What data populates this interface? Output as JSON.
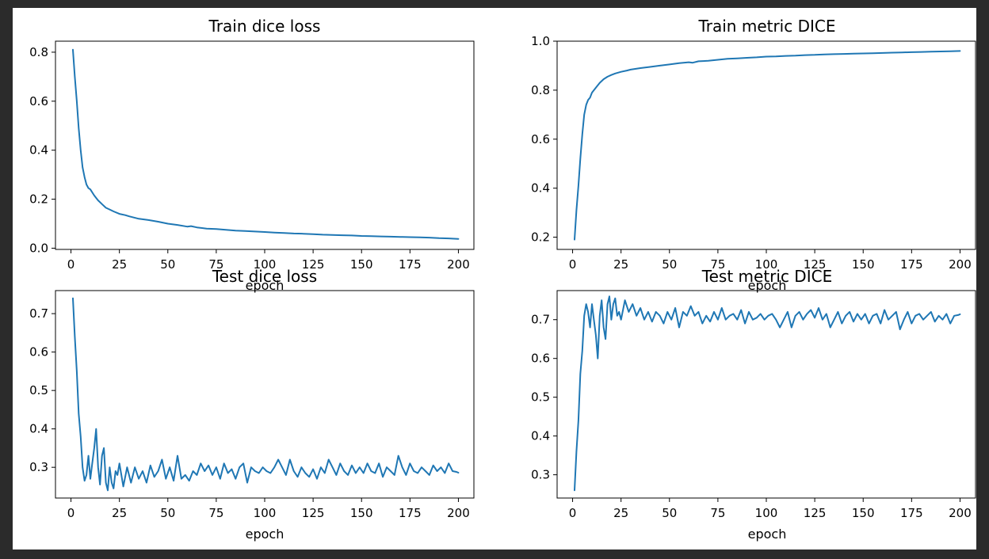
{
  "figure": {
    "background": "#2b2b2b",
    "paper": "#ffffff",
    "line_color": "#1f77b4"
  },
  "chart_data": [
    {
      "type": "line",
      "title": "Train dice loss",
      "xlabel": "epoch",
      "ylabel": "",
      "xlim": [
        -8,
        208
      ],
      "ylim": [
        -0.005,
        0.845
      ],
      "xticks": [
        0,
        25,
        50,
        75,
        100,
        125,
        150,
        175,
        200
      ],
      "yticks": [
        0.0,
        0.2,
        0.4,
        0.6,
        0.8
      ],
      "ytick_labels": [
        "0.0",
        "0.2",
        "0.4",
        "0.6",
        "0.8"
      ],
      "series": [
        {
          "x": [
            1,
            2,
            3,
            4,
            5,
            6,
            7,
            8,
            9,
            10,
            12,
            14,
            16,
            18,
            20,
            22,
            25,
            28,
            30,
            35,
            40,
            45,
            50,
            55,
            60,
            62,
            65,
            70,
            75,
            80,
            85,
            90,
            95,
            100,
            105,
            110,
            115,
            120,
            125,
            130,
            135,
            140,
            145,
            150,
            155,
            160,
            165,
            170,
            175,
            180,
            185,
            190,
            195,
            200
          ],
          "y": [
            0.81,
            0.7,
            0.6,
            0.49,
            0.4,
            0.33,
            0.29,
            0.26,
            0.245,
            0.24,
            0.215,
            0.195,
            0.18,
            0.165,
            0.158,
            0.15,
            0.14,
            0.135,
            0.13,
            0.12,
            0.115,
            0.108,
            0.1,
            0.095,
            0.088,
            0.09,
            0.085,
            0.08,
            0.078,
            0.075,
            0.072,
            0.07,
            0.068,
            0.066,
            0.064,
            0.062,
            0.06,
            0.059,
            0.057,
            0.055,
            0.054,
            0.053,
            0.052,
            0.05,
            0.049,
            0.048,
            0.047,
            0.046,
            0.045,
            0.044,
            0.043,
            0.041,
            0.04,
            0.038
          ]
        }
      ]
    },
    {
      "type": "line",
      "title": "Train metric DICE",
      "xlabel": "epoch",
      "ylabel": "",
      "xlim": [
        -8,
        208
      ],
      "ylim": [
        0.15,
        1.0
      ],
      "xticks": [
        0,
        25,
        50,
        75,
        100,
        125,
        150,
        175,
        200
      ],
      "yticks": [
        0.2,
        0.4,
        0.6,
        0.8,
        1.0
      ],
      "ytick_labels": [
        "0.2",
        "0.4",
        "0.6",
        "0.8",
        "1.0"
      ],
      "series": [
        {
          "x": [
            1,
            2,
            3,
            4,
            5,
            6,
            7,
            8,
            9,
            10,
            12,
            14,
            16,
            18,
            20,
            22,
            25,
            28,
            30,
            35,
            40,
            45,
            50,
            55,
            60,
            62,
            65,
            70,
            75,
            80,
            85,
            90,
            95,
            100,
            105,
            110,
            115,
            120,
            125,
            130,
            135,
            140,
            145,
            150,
            155,
            160,
            165,
            170,
            175,
            180,
            185,
            190,
            195,
            200
          ],
          "y": [
            0.19,
            0.31,
            0.41,
            0.52,
            0.62,
            0.7,
            0.74,
            0.76,
            0.77,
            0.79,
            0.81,
            0.83,
            0.845,
            0.855,
            0.862,
            0.868,
            0.875,
            0.88,
            0.884,
            0.89,
            0.895,
            0.9,
            0.905,
            0.91,
            0.914,
            0.912,
            0.918,
            0.92,
            0.924,
            0.928,
            0.93,
            0.932,
            0.934,
            0.937,
            0.938,
            0.94,
            0.941,
            0.943,
            0.944,
            0.946,
            0.947,
            0.948,
            0.949,
            0.95,
            0.951,
            0.952,
            0.953,
            0.954,
            0.955,
            0.956,
            0.957,
            0.958,
            0.959,
            0.96
          ]
        }
      ]
    },
    {
      "type": "line",
      "title": "Test dice loss",
      "xlabel": "epoch",
      "ylabel": "",
      "xlim": [
        -8,
        208
      ],
      "ylim": [
        0.22,
        0.76
      ],
      "xticks": [
        0,
        25,
        50,
        75,
        100,
        125,
        150,
        175,
        200
      ],
      "yticks": [
        0.3,
        0.4,
        0.5,
        0.6,
        0.7
      ],
      "ytick_labels": [
        "0.3",
        "0.4",
        "0.5",
        "0.6",
        "0.7"
      ],
      "series": [
        {
          "x": [
            1,
            2,
            3,
            4,
            5,
            6,
            7,
            8,
            9,
            10,
            11,
            12,
            13,
            14,
            15,
            16,
            17,
            18,
            19,
            20,
            21,
            22,
            23,
            24,
            25,
            27,
            29,
            31,
            33,
            35,
            37,
            39,
            41,
            43,
            45,
            47,
            49,
            51,
            53,
            55,
            57,
            59,
            61,
            63,
            65,
            67,
            69,
            71,
            73,
            75,
            77,
            79,
            81,
            83,
            85,
            87,
            89,
            91,
            93,
            95,
            97,
            99,
            101,
            103,
            105,
            107,
            109,
            111,
            113,
            115,
            117,
            119,
            121,
            123,
            125,
            127,
            129,
            131,
            133,
            135,
            137,
            139,
            141,
            143,
            145,
            147,
            149,
            151,
            153,
            155,
            157,
            159,
            161,
            163,
            165,
            167,
            169,
            171,
            173,
            175,
            177,
            179,
            181,
            183,
            185,
            187,
            189,
            191,
            193,
            195,
            197,
            199,
            200
          ],
          "y": [
            0.74,
            0.64,
            0.55,
            0.44,
            0.38,
            0.3,
            0.265,
            0.28,
            0.33,
            0.27,
            0.31,
            0.35,
            0.4,
            0.3,
            0.255,
            0.33,
            0.35,
            0.26,
            0.24,
            0.3,
            0.26,
            0.245,
            0.29,
            0.28,
            0.31,
            0.25,
            0.3,
            0.26,
            0.3,
            0.27,
            0.29,
            0.26,
            0.305,
            0.275,
            0.29,
            0.32,
            0.27,
            0.3,
            0.265,
            0.33,
            0.27,
            0.28,
            0.265,
            0.29,
            0.28,
            0.31,
            0.29,
            0.305,
            0.28,
            0.3,
            0.27,
            0.31,
            0.285,
            0.295,
            0.27,
            0.3,
            0.31,
            0.26,
            0.3,
            0.29,
            0.285,
            0.3,
            0.29,
            0.285,
            0.3,
            0.32,
            0.3,
            0.28,
            0.32,
            0.29,
            0.275,
            0.3,
            0.285,
            0.275,
            0.295,
            0.27,
            0.3,
            0.285,
            0.32,
            0.3,
            0.28,
            0.31,
            0.29,
            0.28,
            0.305,
            0.285,
            0.3,
            0.285,
            0.31,
            0.29,
            0.285,
            0.31,
            0.275,
            0.3,
            0.29,
            0.28,
            0.33,
            0.3,
            0.28,
            0.31,
            0.29,
            0.285,
            0.3,
            0.29,
            0.28,
            0.305,
            0.29,
            0.3,
            0.285,
            0.31,
            0.29,
            0.288,
            0.286
          ]
        }
      ]
    },
    {
      "type": "line",
      "title": "Test metric DICE",
      "xlabel": "epoch",
      "ylabel": "",
      "xlim": [
        -8,
        208
      ],
      "ylim": [
        0.24,
        0.775
      ],
      "xticks": [
        0,
        25,
        50,
        75,
        100,
        125,
        150,
        175,
        200
      ],
      "yticks": [
        0.3,
        0.4,
        0.5,
        0.6,
        0.7
      ],
      "ytick_labels": [
        "0.3",
        "0.4",
        "0.5",
        "0.6",
        "0.7"
      ],
      "series": [
        {
          "x": [
            1,
            2,
            3,
            4,
            5,
            6,
            7,
            8,
            9,
            10,
            11,
            12,
            13,
            14,
            15,
            16,
            17,
            18,
            19,
            20,
            21,
            22,
            23,
            24,
            25,
            27,
            29,
            31,
            33,
            35,
            37,
            39,
            41,
            43,
            45,
            47,
            49,
            51,
            53,
            55,
            57,
            59,
            61,
            63,
            65,
            67,
            69,
            71,
            73,
            75,
            77,
            79,
            81,
            83,
            85,
            87,
            89,
            91,
            93,
            95,
            97,
            99,
            101,
            103,
            105,
            107,
            109,
            111,
            113,
            115,
            117,
            119,
            121,
            123,
            125,
            127,
            129,
            131,
            133,
            135,
            137,
            139,
            141,
            143,
            145,
            147,
            149,
            151,
            153,
            155,
            157,
            159,
            161,
            163,
            165,
            167,
            169,
            171,
            173,
            175,
            177,
            179,
            181,
            183,
            185,
            187,
            189,
            191,
            193,
            195,
            197,
            199,
            200
          ],
          "y": [
            0.26,
            0.36,
            0.44,
            0.56,
            0.62,
            0.71,
            0.74,
            0.72,
            0.68,
            0.74,
            0.7,
            0.66,
            0.6,
            0.71,
            0.75,
            0.68,
            0.65,
            0.74,
            0.76,
            0.7,
            0.74,
            0.755,
            0.71,
            0.72,
            0.7,
            0.75,
            0.72,
            0.74,
            0.71,
            0.73,
            0.7,
            0.72,
            0.695,
            0.72,
            0.71,
            0.69,
            0.72,
            0.7,
            0.73,
            0.68,
            0.72,
            0.71,
            0.735,
            0.71,
            0.72,
            0.69,
            0.71,
            0.695,
            0.72,
            0.7,
            0.73,
            0.7,
            0.71,
            0.715,
            0.7,
            0.725,
            0.69,
            0.72,
            0.7,
            0.705,
            0.715,
            0.7,
            0.71,
            0.715,
            0.7,
            0.68,
            0.7,
            0.72,
            0.68,
            0.71,
            0.72,
            0.7,
            0.715,
            0.725,
            0.705,
            0.73,
            0.7,
            0.715,
            0.68,
            0.7,
            0.72,
            0.69,
            0.71,
            0.72,
            0.695,
            0.715,
            0.7,
            0.715,
            0.69,
            0.71,
            0.715,
            0.69,
            0.725,
            0.7,
            0.71,
            0.72,
            0.675,
            0.7,
            0.72,
            0.69,
            0.71,
            0.715,
            0.7,
            0.71,
            0.72,
            0.695,
            0.71,
            0.7,
            0.715,
            0.69,
            0.71,
            0.712,
            0.714
          ]
        }
      ]
    }
  ]
}
